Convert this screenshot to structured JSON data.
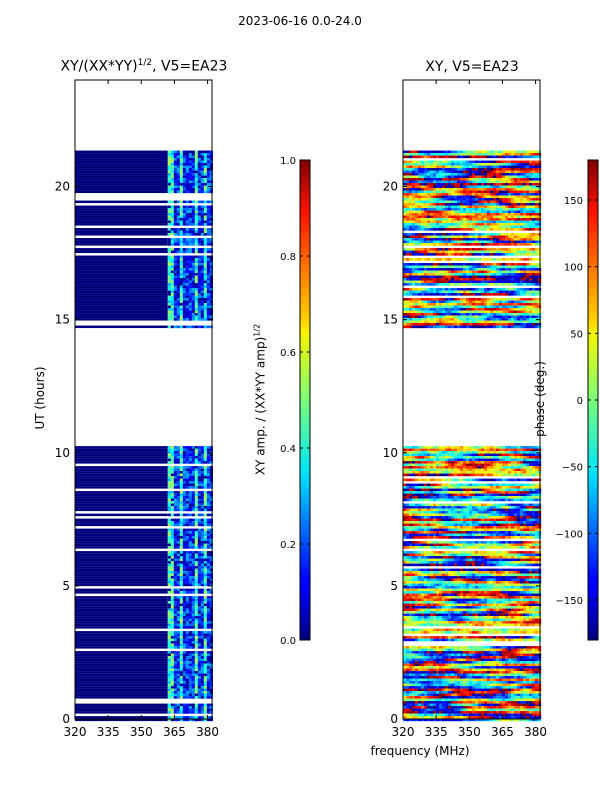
{
  "suptitle": "2023-06-16 0.0-24.0",
  "xaxis_label": "frequency (MHz)",
  "chart_data": [
    {
      "type": "heatmap",
      "title": "XY/(XX*YY)^1/2, V5=EA23",
      "title_main": "XY/(XX*YY)",
      "title_sup": "1/2",
      "title_tail": ", V5=EA23",
      "xlabel": "frequency (MHz)",
      "ylabel": "UT (hours)",
      "xlim": [
        320,
        382
      ],
      "ylim": [
        0,
        24
      ],
      "xticks": [
        320,
        335,
        350,
        365,
        380
      ],
      "yticks": [
        0,
        5,
        10,
        15,
        20
      ],
      "data_bands_hours": [
        [
          0,
          10.25
        ],
        [
          14.75,
          21.35
        ]
      ],
      "colorbar": {
        "label": "XY amp. / (XX*YY amp)^1/2",
        "label_main": "XY amp. / (XX*YY amp)",
        "label_sup": "1/2",
        "range": [
          0.0,
          1.0
        ],
        "ticks": [
          "0.0",
          "0.2",
          "0.4",
          "0.6",
          "0.8",
          "1.0"
        ],
        "tick_values": [
          0.0,
          0.2,
          0.4,
          0.6,
          0.8,
          1.0
        ]
      }
    },
    {
      "type": "heatmap",
      "title": "XY, V5=EA23",
      "xlabel": "frequency (MHz)",
      "ylabel": "",
      "xlim": [
        320,
        382
      ],
      "ylim": [
        0,
        24
      ],
      "xticks": [
        320,
        335,
        350,
        365,
        380
      ],
      "yticks": [
        0,
        5,
        10,
        15,
        20
      ],
      "data_bands_hours": [
        [
          0,
          10.25
        ],
        [
          14.75,
          21.35
        ]
      ],
      "colorbar": {
        "label": "phase (deg.)",
        "range": [
          -180,
          180
        ],
        "ticks": [
          "−150",
          "−100",
          "−50",
          "0",
          "50",
          "100",
          "150"
        ],
        "tick_values": [
          -150,
          -100,
          -50,
          0,
          50,
          100,
          150
        ]
      }
    }
  ]
}
